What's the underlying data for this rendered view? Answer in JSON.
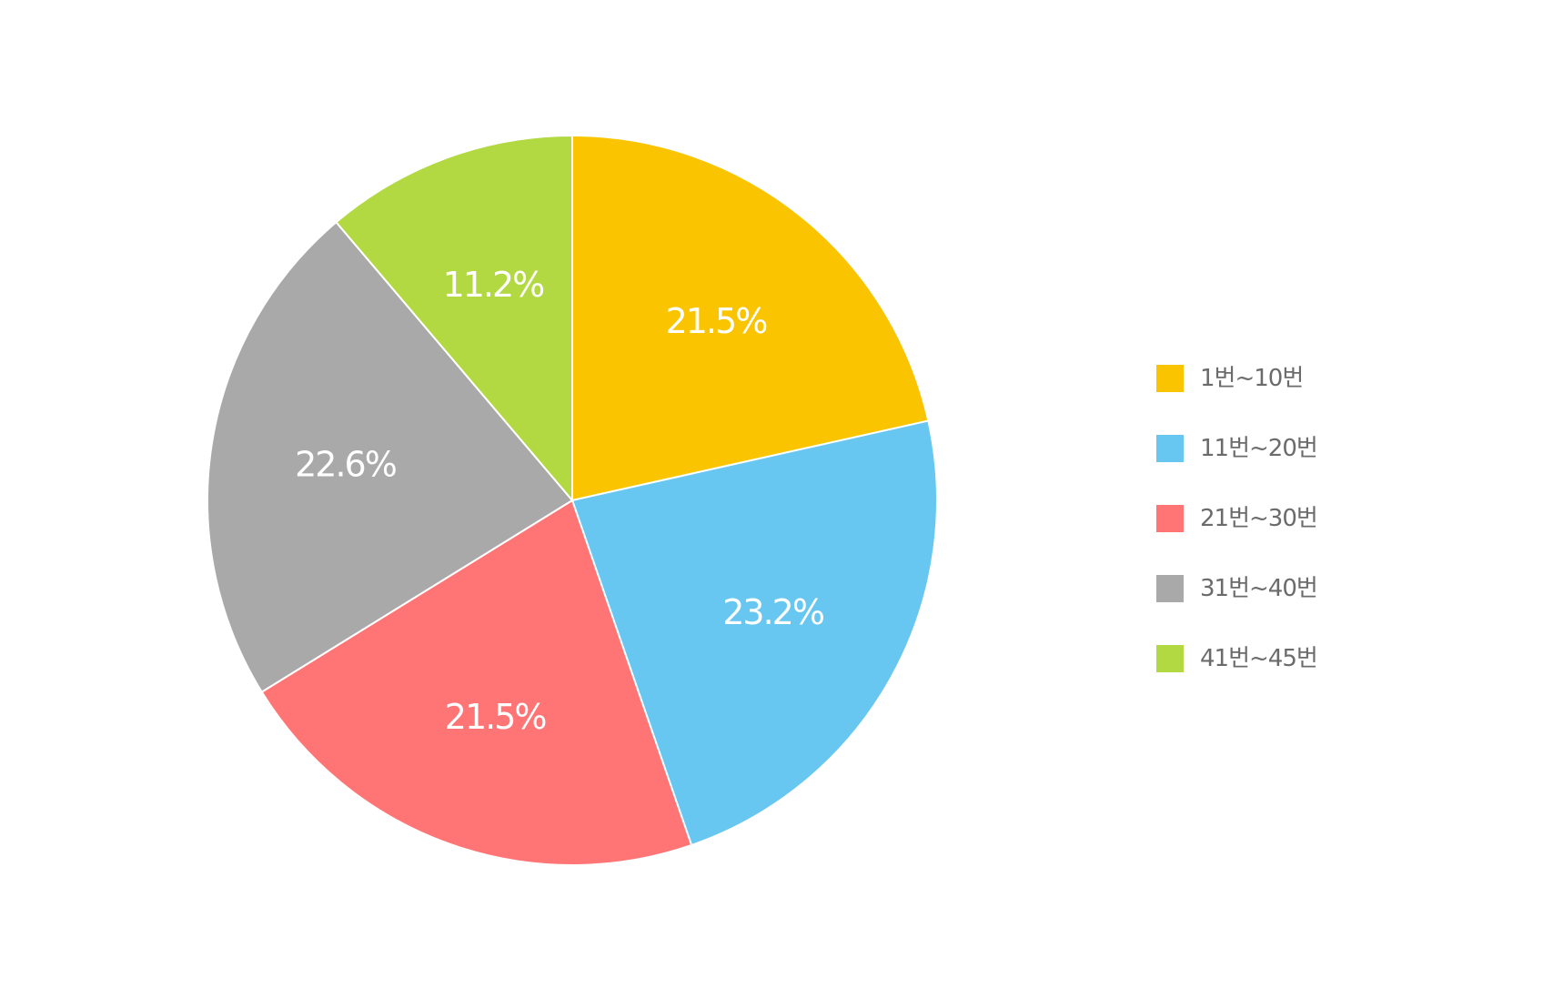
{
  "chart_data": {
    "type": "pie",
    "title": "",
    "categories": [
      "1번~10번",
      "11번~20번",
      "21번~30번",
      "31번~40번",
      "41번~45번"
    ],
    "values": [
      21.5,
      23.2,
      21.5,
      22.6,
      11.2
    ],
    "labels": [
      "21.5%",
      "23.2%",
      "21.5%",
      "22.6%",
      "11.2%"
    ],
    "colors": [
      "#FBC400",
      "#68C7F1",
      "#FF7474",
      "#A9A9A9",
      "#B2D942"
    ],
    "start_angle_deg": 0,
    "direction": "clockwise",
    "legend_position": "right"
  }
}
